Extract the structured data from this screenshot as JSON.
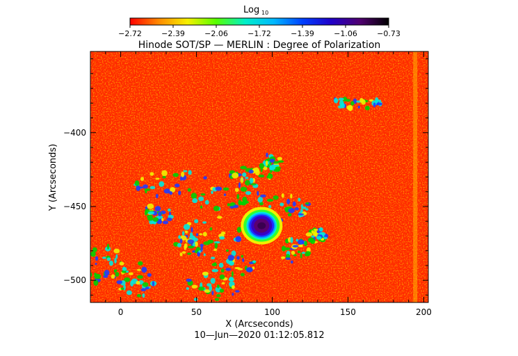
{
  "chart_data": {
    "type": "heatmap",
    "title": "Hinode SOT/SP — MERLIN : Degree of Polarization",
    "xlabel": "X (Arcseconds)",
    "ylabel": "Y (Arcseconds)",
    "footer": "10—Jun—2020 01:12:05.812",
    "colorbar": {
      "title": "Log",
      "title_sub": "10",
      "ticks": [
        "−2.72",
        "−2.39",
        "−2.06",
        "−1.72",
        "−1.39",
        "−1.06",
        "−0.73"
      ],
      "range": [
        -2.72,
        -0.73
      ],
      "colors": [
        "#ff0000",
        "#ff8a00",
        "#f6f000",
        "#57ff00",
        "#00f0c8",
        "#00b8ff",
        "#0040ff",
        "#2000c8",
        "#500070",
        "#000000"
      ]
    },
    "xlim": [
      -20,
      203
    ],
    "ylim": [
      -515,
      -345
    ],
    "xticks": [
      0,
      50,
      100,
      150,
      200
    ],
    "yticks": [
      -400,
      -450,
      -500
    ],
    "xtick_labels": [
      "0",
      "50",
      "100",
      "150",
      "200"
    ],
    "ytick_labels": [
      "−400",
      "−450",
      "−500"
    ],
    "features": {
      "sunspot_center": [
        93,
        -463
      ],
      "background_level": -2.72
    }
  }
}
